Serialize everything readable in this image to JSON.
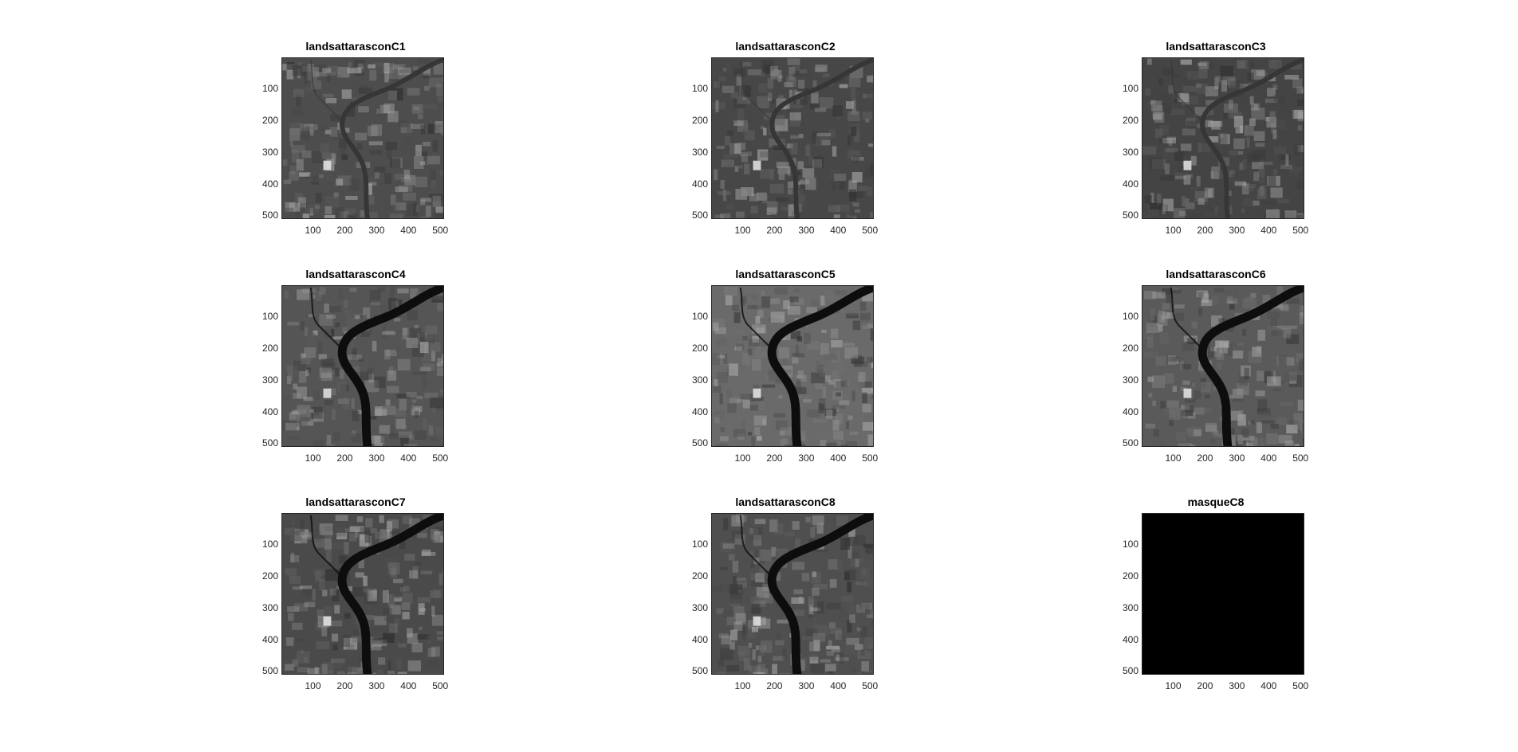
{
  "figure": {
    "panels": [
      {
        "title": "landsattarasconC1",
        "kind": "satellite",
        "tone": "#4d4d4d",
        "river": false
      },
      {
        "title": "landsattarasconC2",
        "kind": "satellite",
        "tone": "#474747",
        "river": false
      },
      {
        "title": "landsattarasconC3",
        "kind": "satellite",
        "tone": "#444444",
        "river": false
      },
      {
        "title": "landsattarasconC4",
        "kind": "satellite",
        "tone": "#555555",
        "river": true
      },
      {
        "title": "landsattarasconC5",
        "kind": "satellite",
        "tone": "#6a6a6a",
        "river": true
      },
      {
        "title": "landsattarasconC6",
        "kind": "satellite",
        "tone": "#5a5a5a",
        "river": true
      },
      {
        "title": "landsattarasconC7",
        "kind": "satellite",
        "tone": "#4a4a4a",
        "river": true
      },
      {
        "title": "landsattarasconC8",
        "kind": "satellite",
        "tone": "#4f4f4f",
        "river": true
      },
      {
        "title": "masqueC8",
        "kind": "mask",
        "tone": "#000000",
        "river": false
      }
    ],
    "yticks": [
      "100",
      "200",
      "300",
      "400",
      "500"
    ],
    "xticks": [
      "100",
      "200",
      "300",
      "400",
      "500"
    ],
    "axis_range": [
      1,
      512
    ]
  }
}
